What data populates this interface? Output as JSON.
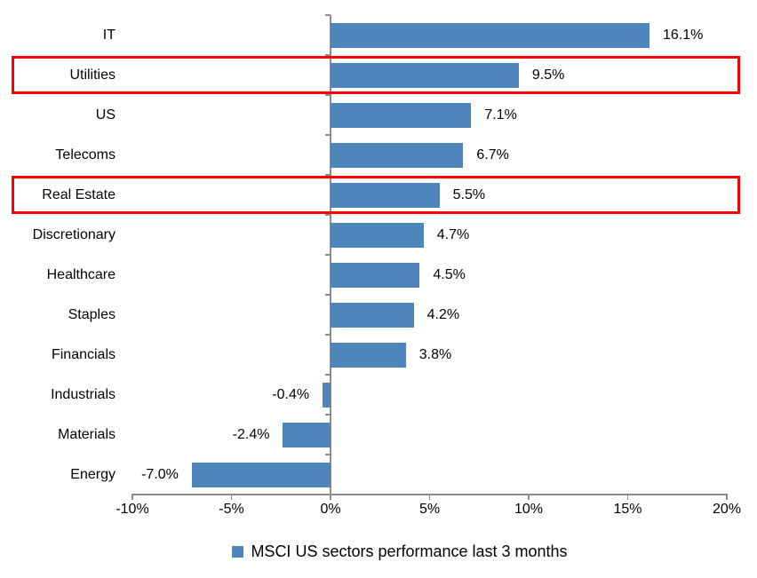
{
  "chart_data": {
    "type": "bar",
    "orientation": "horizontal",
    "title": "",
    "xlabel": "",
    "ylabel": "",
    "xlim": [
      -10,
      20
    ],
    "grid": false,
    "categories": [
      "IT",
      "Utilities",
      "US",
      "Telecoms",
      "Real Estate",
      "Discretionary",
      "Healthcare",
      "Staples",
      "Financials",
      "Industrials",
      "Materials",
      "Energy"
    ],
    "values": [
      16.1,
      9.5,
      7.1,
      6.7,
      5.5,
      4.7,
      4.5,
      4.2,
      3.8,
      -0.4,
      -2.4,
      -7.0
    ],
    "value_labels": [
      "16.1%",
      "9.5%",
      "7.1%",
      "6.7%",
      "5.5%",
      "4.7%",
      "4.5%",
      "4.2%",
      "3.8%",
      "-0.4%",
      "-2.4%",
      "-7.0%"
    ],
    "x_tick_values": [
      -10,
      -5,
      0,
      5,
      10,
      15,
      20
    ],
    "x_tick_labels": [
      "-10%",
      "-5%",
      "0%",
      "5%",
      "10%",
      "15%",
      "20%"
    ],
    "legend": "MSCI US sectors performance last 3 months",
    "legend_position": "bottom",
    "bar_color": "#4e86bc",
    "highlight_color": "#ff0000",
    "highlighted_categories": [
      "Utilities",
      "Real Estate"
    ]
  }
}
